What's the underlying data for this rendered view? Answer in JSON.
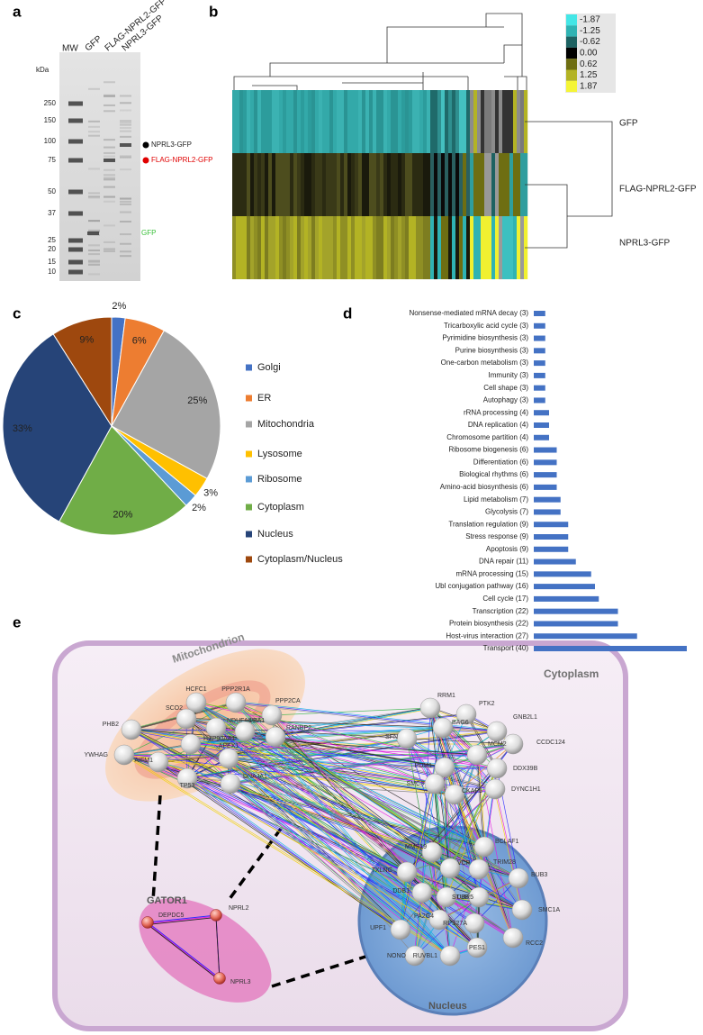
{
  "panel_labels": [
    "a",
    "b",
    "c",
    "d",
    "e"
  ],
  "gel": {
    "unit": "kDa",
    "lanes": [
      "MW",
      "GFP",
      "FLAG-NPRL2-GFP",
      "NPRL3-GFP"
    ],
    "markers": [
      250,
      150,
      100,
      75,
      50,
      37,
      25,
      20,
      15,
      10
    ],
    "annotations": [
      "NPRL3-GFP",
      "FLAG-NPRL2-GFP",
      "GFP"
    ]
  },
  "heatmap": {
    "scale_labels": [
      "-1.87",
      "-1.25",
      "-0.62",
      "0.00",
      "0.62",
      "1.25",
      "1.87"
    ],
    "scale_colors": [
      "#44e6e6",
      "#2fb3b3",
      "#1d6262",
      "#000000",
      "#6e6e12",
      "#b3b324",
      "#f5f536"
    ],
    "rows": [
      "GFP",
      "FLAG-NPRL2-GFP",
      "NPRL3-GFP"
    ]
  },
  "chart_data": [
    {
      "type": "pie",
      "categories": [
        "Golgi",
        "ER",
        "Mitochondria",
        "Lysosome",
        "Ribosome",
        "Cytoplasm",
        "Nucleus",
        "Cytoplasm/Nucleus"
      ],
      "values": [
        2,
        6,
        25,
        3,
        2,
        20,
        33,
        9
      ],
      "value_labels": [
        "2%",
        "6%",
        "25%",
        "3%",
        "2%",
        "20%",
        "33%",
        "9%"
      ],
      "colors": [
        "#4472c4",
        "#ed7d31",
        "#a5a5a5",
        "#ffc000",
        "#5b9bd5",
        "#70ad47",
        "#264478",
        "#9e480e"
      ],
      "legend": "right"
    },
    {
      "type": "bar",
      "orientation": "horizontal",
      "categories": [
        "Nonsense-mediated mRNA decay (3)",
        "Tricarboxylic acid cycle (3)",
        "Pyrimidine biosynthesis (3)",
        "Purine biosynthesis (3)",
        "One-carbon metabolism (3)",
        "Immunity (3)",
        "Cell shape (3)",
        "Autophagy (3)",
        "rRNA processing (4)",
        "DNA replication (4)",
        "Chromosome partition (4)",
        "Ribosome biogenesis (6)",
        "Differentiation (6)",
        "Biological rhythms (6)",
        "Amino-acid biosynthesis (6)",
        "Lipid metabolism (7)",
        "Glycolysis (7)",
        "Translation regulation (9)",
        "Stress response (9)",
        "Apoptosis (9)",
        "DNA repair (11)",
        "mRNA processing (15)",
        "Ubl conjugation pathway (16)",
        "Cell cycle (17)",
        "Transcription (22)",
        "Protein biosynthesis (22)",
        "Host-virus interaction (27)",
        "Transport (40)"
      ],
      "values": [
        3,
        3,
        3,
        3,
        3,
        3,
        3,
        3,
        4,
        4,
        4,
        6,
        6,
        6,
        6,
        7,
        7,
        9,
        9,
        9,
        11,
        15,
        16,
        17,
        22,
        22,
        27,
        40
      ],
      "color": "#4472c4"
    }
  ],
  "network": {
    "compartments": [
      "Mitochondrion",
      "Cytoplasm",
      "GATOR1",
      "Nucleus"
    ],
    "nodes": [
      "HCFC1",
      "PPP2R1A",
      "PPP2CA",
      "SCO2",
      "NDUFA4",
      "UBA1",
      "RANBP2",
      "PHB2",
      "HSP90AA1",
      "YWHAG",
      "APEX1",
      "AIFM1",
      "TP53",
      "DNAJA1",
      "RRM1",
      "PTK2",
      "GNB2L1",
      "BAG6",
      "SFN",
      "CCDC124",
      "MCM2",
      "PUM1",
      "DDX39B",
      "SMC3",
      "DYNC1H1",
      "CKAP5",
      "MMS19",
      "BCLAF1",
      "TRIM28",
      "BUB3",
      "VCP",
      "TXLNG",
      "DDB1",
      "STUB1",
      "UBR5",
      "SMC1A",
      "PA2G4",
      "RPS27A",
      "RCC2",
      "UPF1",
      "NONO",
      "RUVBL1",
      "PES1",
      "DEPDC5",
      "NPRL2",
      "NPRL3"
    ]
  }
}
